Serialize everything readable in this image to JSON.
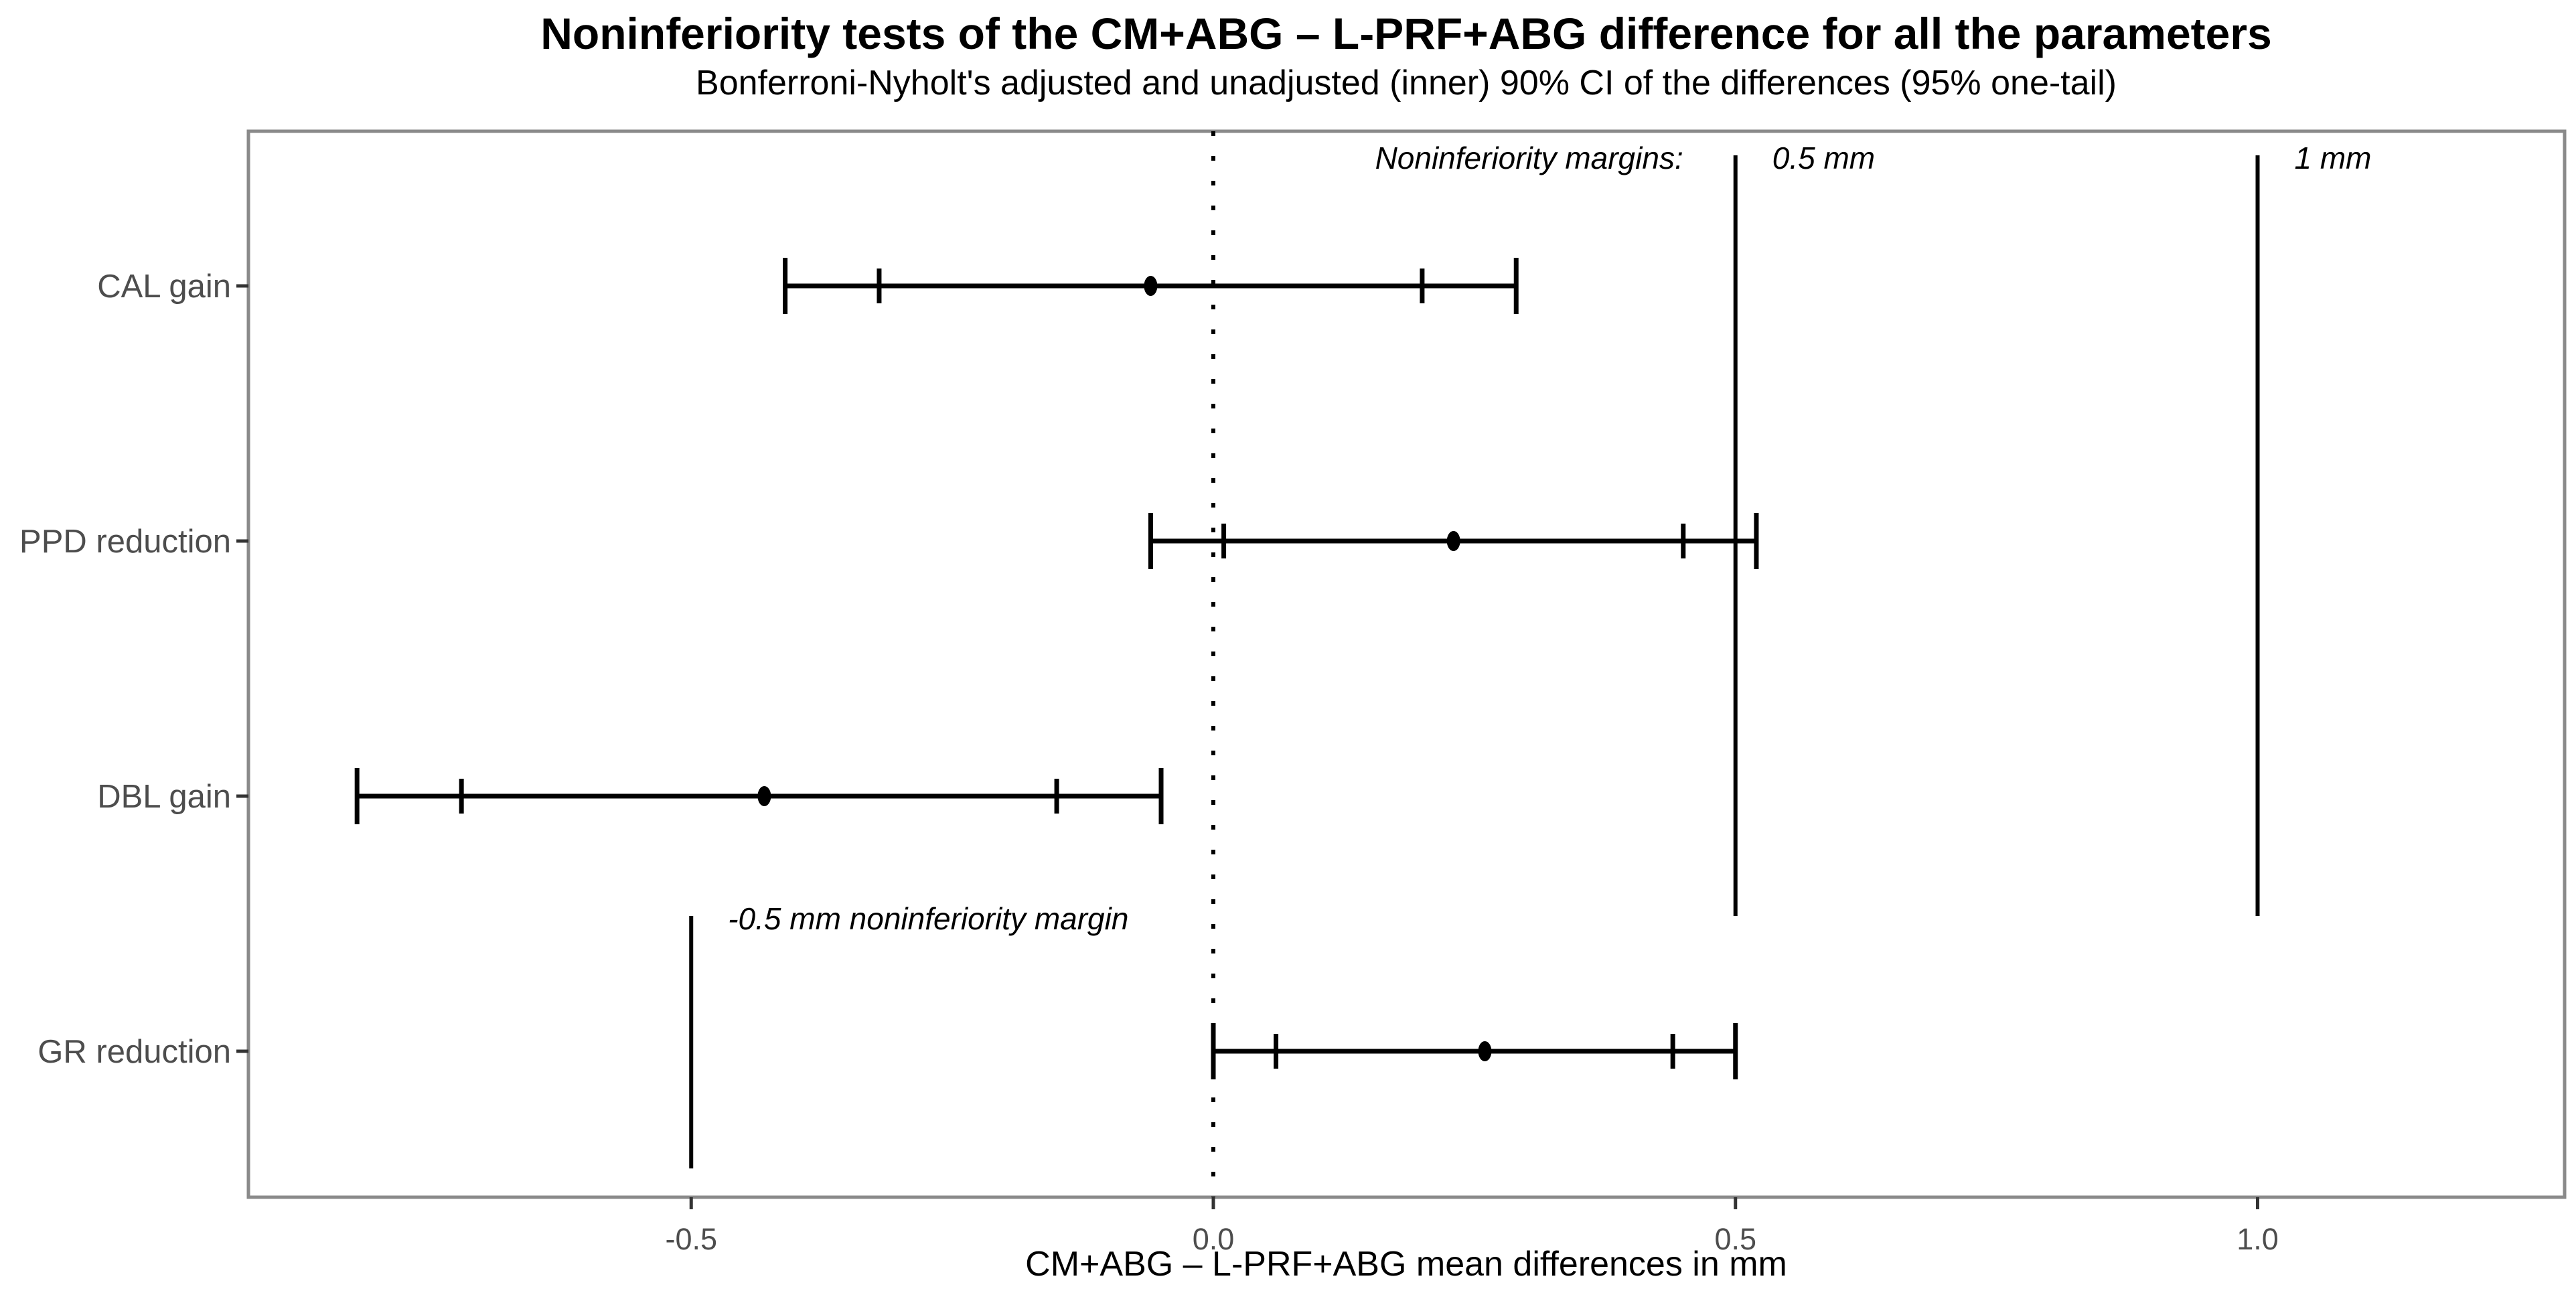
{
  "chart_data": {
    "type": "errorbar-forest",
    "title": "Noninferiority tests of the CM+ABG – L-PRF+ABG difference for all the parameters",
    "subtitle": "Bonferroni-Nyholt's adjusted and unadjusted (inner) 90% CI of the differences (95% one-tail)",
    "xlabel": "CM+ABG – L-PRF+ABG mean differences in mm",
    "ylabel": "",
    "xlim": [
      -0.924,
      1.294
    ],
    "grid": "off",
    "legend": "none",
    "x_ticks": [
      -0.5,
      0.0,
      0.5,
      1.0
    ],
    "x_tick_labels": [
      "-0.5",
      "0.0",
      "0.5",
      "1.0"
    ],
    "rows": [
      {
        "label": "CAL gain",
        "mean": -0.06,
        "inner_ci": [
          -0.32,
          0.2
        ],
        "outer_ci": [
          -0.41,
          0.29
        ]
      },
      {
        "label": "PPD reduction",
        "mean": 0.23,
        "inner_ci": [
          0.01,
          0.45
        ],
        "outer_ci": [
          -0.06,
          0.52
        ]
      },
      {
        "label": "DBL gain",
        "mean": -0.43,
        "inner_ci": [
          -0.72,
          -0.15
        ],
        "outer_ci": [
          -0.82,
          -0.05
        ]
      },
      {
        "label": "GR reduction",
        "mean": 0.26,
        "inner_ci": [
          0.06,
          0.44
        ],
        "outer_ci": [
          0.0,
          0.5
        ]
      }
    ],
    "reference_line": {
      "x": 0,
      "style": "dotted"
    },
    "margin_lines": [
      {
        "x": 0.5,
        "label": "0.5 mm",
        "span": "upper"
      },
      {
        "x": 1.0,
        "label": "1 mm",
        "span": "upper"
      },
      {
        "x": -0.5,
        "label": "-0.5 mm noninferiority margin",
        "span": "lower"
      }
    ],
    "annotations": {
      "margins_caption": "Noninferiority margins:"
    },
    "colors": {
      "data": "#000000",
      "axis_text": "#4d4d4d",
      "tick_mark": "#333333",
      "panel_border": "#8a8a8a",
      "background": "#ffffff"
    }
  }
}
